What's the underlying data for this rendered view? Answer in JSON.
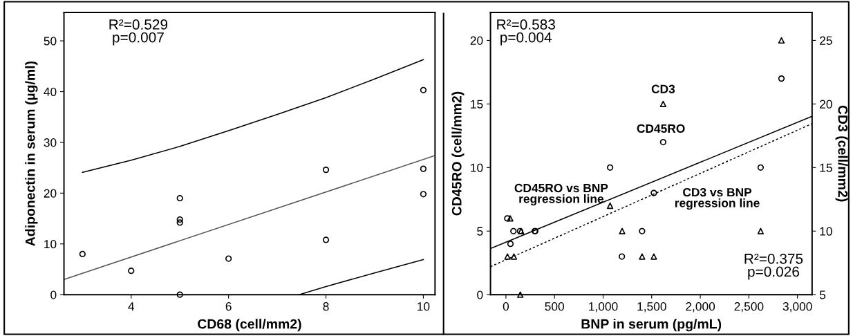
{
  "chart_data": [
    {
      "type": "scatter",
      "xlabel": "CD68 (cell/mm2)",
      "ylabel": "Adiponectin in serum (µg/ml)",
      "xlim": [
        2.62,
        10.24
      ],
      "ylim": [
        0,
        55.6
      ],
      "xticks": [
        4,
        6,
        8,
        10
      ],
      "yticks": [
        0,
        10,
        20,
        30,
        40,
        50
      ],
      "grid": false,
      "legend": false,
      "marker": "circle",
      "annotations": [
        "R²=0.529\np=0.007"
      ],
      "series": [
        {
          "color": "#000000",
          "x": [
            3,
            4,
            5,
            5,
            5,
            5,
            6,
            8,
            8,
            10,
            10,
            10
          ],
          "values": [
            8,
            4.7,
            19,
            14.8,
            14.2,
            0,
            7.1,
            24.6,
            10.8,
            40.3,
            24.8,
            19.8
          ]
        },
        {
          "type": "line",
          "color": "#555555",
          "line_style": "solid",
          "marker": "none",
          "x": [
            2.62,
            10.24
          ],
          "values": [
            3.0,
            27.4
          ]
        },
        {
          "type": "line",
          "color": "#000000",
          "line_style": "solid",
          "marker": "none",
          "x": [
            3,
            4,
            5,
            6,
            7,
            8,
            9,
            10
          ],
          "values": [
            24.1,
            26.5,
            29.2,
            32.3,
            35.5,
            38.8,
            42.5,
            46.3
          ]
        },
        {
          "type": "line",
          "color": "#000000",
          "line_style": "solid",
          "marker": "none",
          "x": [
            7.45,
            8,
            9,
            10
          ],
          "values": [
            0,
            1.6,
            4.3,
            6.9
          ]
        }
      ]
    },
    {
      "type": "scatter",
      "xlabel": "BNP in serum (pg/mL)",
      "ylabel": "CD45RO (cell/mm2)",
      "y2label": "CD3 (cell/mm2)",
      "xlim": [
        -159,
        3150
      ],
      "ylim": [
        0,
        22.2
      ],
      "y2lim": [
        5,
        27.2
      ],
      "xticks": [
        {
          "value": 0,
          "label": "0"
        },
        {
          "value": 500,
          "label": "500"
        },
        {
          "value": 1000,
          "label": "1,000"
        },
        {
          "value": 1500,
          "label": "1,500"
        },
        {
          "value": 2000,
          "label": "2,000"
        },
        {
          "value": 2500,
          "label": "2,500"
        },
        {
          "value": 3000,
          "label": "3,000"
        }
      ],
      "yticks": [
        0,
        5,
        10,
        15,
        20
      ],
      "y2ticks": [
        5,
        10,
        15,
        20,
        25
      ],
      "grid": false,
      "legend": false,
      "annotations": [
        "R²=0.583\np=0.004",
        "R²=0.375\np=0.026",
        "CD3",
        "CD45RO",
        "CD45RO vs BNP\nregression line",
        "CD3 vs BNP\nregression line"
      ],
      "series": [
        {
          "color": "#000000",
          "marker": "circle",
          "x": [
            14,
            47,
            77,
            145,
            296,
            302,
            1072,
            1193,
            1401,
            1522,
            1618,
            2621,
            2835
          ],
          "values": [
            6,
            4,
            5,
            5,
            5,
            5,
            10,
            3,
            5,
            8,
            12,
            10,
            17
          ]
        },
        {
          "color": "#000000",
          "marker": "triangle",
          "axis": "y2",
          "x": [
            16,
            44,
            82,
            148,
            156,
            1072,
            1196,
            1401,
            1522,
            1618,
            2621,
            2835
          ],
          "values": [
            8,
            11,
            8,
            5,
            10,
            12,
            10,
            8,
            8,
            20,
            10,
            25
          ]
        },
        {
          "type": "line",
          "color": "#000000",
          "line_style": "solid",
          "marker": "none",
          "x": [
            -159,
            3150
          ],
          "values": [
            3.63,
            14.03
          ]
        },
        {
          "type": "line",
          "color": "#000000",
          "line_style": "dotted",
          "marker": "none",
          "axis": "y2",
          "x": [
            -159,
            3150
          ],
          "values": [
            7.2,
            18.45
          ]
        }
      ]
    }
  ]
}
